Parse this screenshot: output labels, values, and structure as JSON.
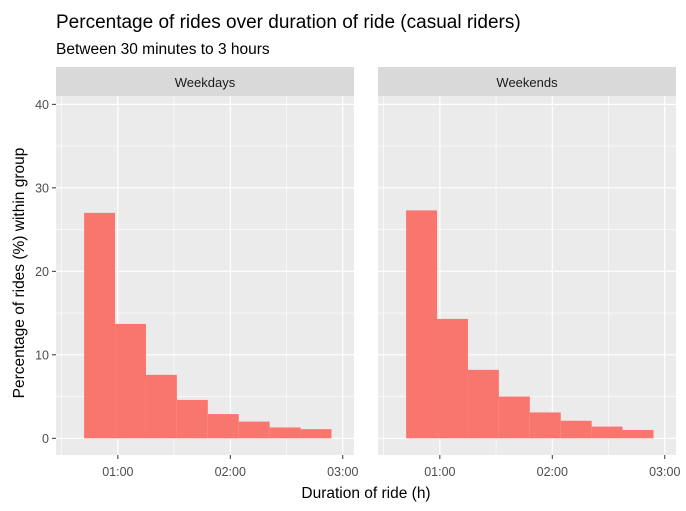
{
  "chart_data": {
    "type": "bar",
    "title": "Percentage of rides over duration of ride (casual riders)",
    "subtitle": "Between 30 minutes to 3 hours",
    "xlabel": "Duration of ride (h)",
    "ylabel": "Percentage of rides (%) within group",
    "x_unit": "hours",
    "x_ticks": [
      {
        "value": 1,
        "label": "01:00"
      },
      {
        "value": 2,
        "label": "02:00"
      },
      {
        "value": 3,
        "label": "03:00"
      }
    ],
    "xlim": [
      0.45,
      3.1
    ],
    "y_ticks": [
      0,
      10,
      20,
      30,
      40
    ],
    "ylim": [
      -2,
      41
    ],
    "bins": [
      [
        0.7,
        0.975
      ],
      [
        0.975,
        1.25
      ],
      [
        1.25,
        1.525
      ],
      [
        1.525,
        1.8
      ],
      [
        1.8,
        2.075
      ],
      [
        2.075,
        2.35
      ],
      [
        2.35,
        2.625
      ],
      [
        2.625,
        2.9
      ]
    ],
    "bar_color": "#F8766D",
    "grid": true,
    "panels": [
      {
        "name": "Weekdays",
        "values": [
          27.0,
          13.7,
          7.6,
          4.6,
          2.9,
          2.0,
          1.3,
          1.1
        ]
      },
      {
        "name": "Weekends",
        "values": [
          27.3,
          14.3,
          8.2,
          5.0,
          3.1,
          2.1,
          1.4,
          1.0
        ]
      }
    ]
  }
}
